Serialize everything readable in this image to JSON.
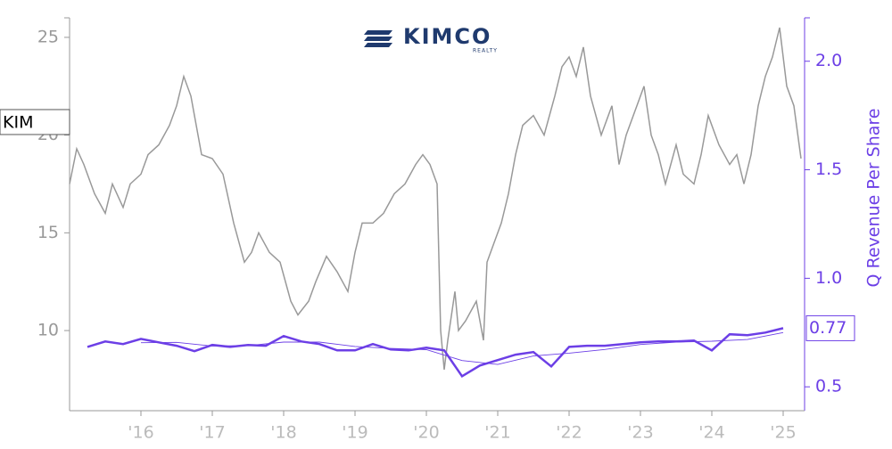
{
  "chart_data": {
    "type": "line",
    "logo": "KIMCO",
    "logo_sub": "REALTY",
    "y2_label": "Q Revenue Per Share",
    "xlim": [
      2015.0,
      2025.3
    ],
    "xticks": [
      {
        "value": 2016,
        "label": "'16"
      },
      {
        "value": 2017,
        "label": "'17"
      },
      {
        "value": 2018,
        "label": "'18"
      },
      {
        "value": 2019,
        "label": "'19"
      },
      {
        "value": 2020,
        "label": "'20"
      },
      {
        "value": 2021,
        "label": "'21"
      },
      {
        "value": 2022,
        "label": "'22"
      },
      {
        "value": 2023,
        "label": "'23"
      },
      {
        "value": 2024,
        "label": "'24"
      },
      {
        "value": 2025,
        "label": "'25"
      }
    ],
    "ylim": [
      5.9,
      26
    ],
    "yticks": [
      10,
      15,
      20,
      25
    ],
    "y2lim": [
      0.39,
      2.2
    ],
    "y2ticks": [
      {
        "value": 0.5,
        "label": "0.5"
      },
      {
        "value": 1.0,
        "label": "1.0"
      },
      {
        "value": 1.5,
        "label": "1.5"
      },
      {
        "value": 2.0,
        "label": "2.0"
      }
    ],
    "series": [
      {
        "name": "KIM",
        "color": "#999999",
        "x": [
          2015.0,
          2015.1,
          2015.2,
          2015.35,
          2015.5,
          2015.6,
          2015.75,
          2015.85,
          2016.0,
          2016.1,
          2016.25,
          2016.4,
          2016.5,
          2016.6,
          2016.7,
          2016.85,
          2017.0,
          2017.15,
          2017.3,
          2017.45,
          2017.55,
          2017.65,
          2017.8,
          2017.95,
          2018.1,
          2018.2,
          2018.35,
          2018.45,
          2018.6,
          2018.75,
          2018.9,
          2019.0,
          2019.1,
          2019.25,
          2019.4,
          2019.55,
          2019.7,
          2019.85,
          2019.95,
          2020.05,
          2020.15,
          2020.2,
          2020.25,
          2020.3,
          2020.4,
          2020.45,
          2020.55,
          2020.7,
          2020.8,
          2020.85,
          2020.95,
          2021.05,
          2021.15,
          2021.25,
          2021.35,
          2021.5,
          2021.65,
          2021.8,
          2021.9,
          2022.0,
          2022.1,
          2022.2,
          2022.3,
          2022.45,
          2022.6,
          2022.7,
          2022.8,
          2022.95,
          2023.05,
          2023.15,
          2023.25,
          2023.35,
          2023.5,
          2023.6,
          2023.75,
          2023.85,
          2023.95,
          2024.1,
          2024.25,
          2024.35,
          2024.45,
          2024.55,
          2024.65,
          2024.75,
          2024.85,
          2024.95,
          2025.05,
          2025.15,
          2025.25
        ],
        "values": [
          17.5,
          19.3,
          18.5,
          17.0,
          16.0,
          17.5,
          16.3,
          17.5,
          18.0,
          19.0,
          19.5,
          20.5,
          21.5,
          23.0,
          22.0,
          19.0,
          18.8,
          18.0,
          15.5,
          13.5,
          14.0,
          15.0,
          14.0,
          13.5,
          11.5,
          10.8,
          11.5,
          12.5,
          13.8,
          13.0,
          12.0,
          14.0,
          15.5,
          15.5,
          16.0,
          17.0,
          17.5,
          18.5,
          19.0,
          18.5,
          17.5,
          10.0,
          8.0,
          9.5,
          12.0,
          10.0,
          10.5,
          11.5,
          9.5,
          13.5,
          14.5,
          15.5,
          17.0,
          19.0,
          20.5,
          21.0,
          20.0,
          22.0,
          23.5,
          24.0,
          23.0,
          24.5,
          22.0,
          20.0,
          21.5,
          18.5,
          20.0,
          21.5,
          22.5,
          20.0,
          19.0,
          17.5,
          19.5,
          18.0,
          17.5,
          19.0,
          21.0,
          19.5,
          18.5,
          19.0,
          17.5,
          19.0,
          21.5,
          23.0,
          24.0,
          25.5,
          22.5,
          21.5,
          18.8
        ]
      },
      {
        "color": "#6c3fe6",
        "axis": "y2",
        "x": [
          2015.25,
          2015.5,
          2015.75,
          2016.0,
          2016.25,
          2016.5,
          2016.75,
          2017.0,
          2017.25,
          2017.5,
          2017.75,
          2018.0,
          2018.25,
          2018.5,
          2018.75,
          2019.0,
          2019.25,
          2019.5,
          2019.75,
          2020.0,
          2020.25,
          2020.5,
          2020.75,
          2021.0,
          2021.25,
          2021.5,
          2021.75,
          2022.0,
          2022.25,
          2022.5,
          2022.75,
          2023.0,
          2023.25,
          2023.5,
          2023.75,
          2024.0,
          2024.25,
          2024.5,
          2024.75,
          2025.0
        ],
        "values": [
          0.684,
          0.709,
          0.697,
          0.721,
          0.705,
          0.689,
          0.664,
          0.693,
          0.684,
          0.693,
          0.689,
          0.734,
          0.709,
          0.697,
          0.668,
          0.668,
          0.697,
          0.672,
          0.668,
          0.68,
          0.668,
          0.549,
          0.598,
          0.623,
          0.648,
          0.66,
          0.594,
          0.684,
          0.689,
          0.689,
          0.697,
          0.705,
          0.709,
          0.709,
          0.713,
          0.668,
          0.742,
          0.738,
          0.75,
          0.77
        ]
      },
      {
        "color": "#6c3fe6",
        "axis": "y2",
        "x": [
          2016.0,
          2016.5,
          2017.0,
          2017.5,
          2018.0,
          2018.5,
          2019.0,
          2019.5,
          2020.0,
          2020.5,
          2021.0,
          2021.5,
          2022.0,
          2022.5,
          2023.0,
          2023.5,
          2024.0,
          2024.5,
          2025.0
        ],
        "values": [
          0.703,
          0.705,
          0.688,
          0.69,
          0.706,
          0.706,
          0.686,
          0.677,
          0.671,
          0.621,
          0.603,
          0.642,
          0.655,
          0.672,
          0.695,
          0.706,
          0.71,
          0.718,
          0.75
        ]
      }
    ]
  }
}
